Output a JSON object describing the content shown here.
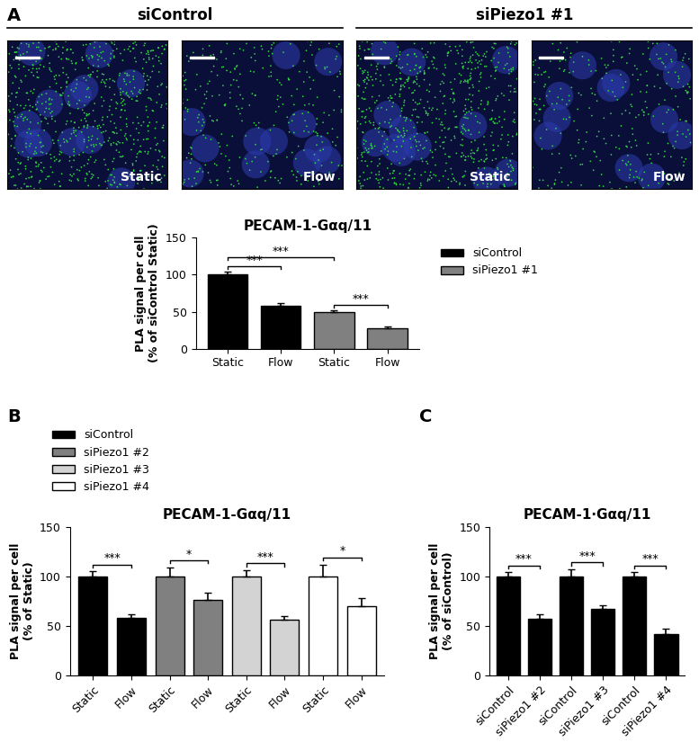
{
  "image_panel": {
    "panel": "A",
    "groups": [
      {
        "name": "siControl",
        "images": [
          "Static",
          "Flow"
        ]
      },
      {
        "name": "siPiezo1 #1",
        "images": [
          "Static",
          "Flow"
        ]
      }
    ]
  },
  "chart_data": [
    {
      "type": "bar",
      "panel": "A",
      "title": "PECAM-1-Gαq/11",
      "y_label": "PLA signal per cell\n(% of siControl Static)",
      "categories": [
        "Static",
        "Flow",
        "Static",
        "Flow"
      ],
      "series": [
        {
          "name": "siControl",
          "color": "#000000",
          "values": [
            100,
            58,
            null,
            null
          ],
          "errors": [
            4,
            4,
            null,
            null
          ]
        },
        {
          "name": "siPiezo1 #1",
          "color": "#808080",
          "values": [
            null,
            null,
            50,
            28
          ],
          "errors": [
            null,
            null,
            2,
            2
          ]
        }
      ],
      "ylim": [
        0,
        150
      ],
      "yticks": [
        0,
        50,
        100,
        150
      ],
      "legend": "upper left",
      "significance": [
        {
          "from": 0,
          "to": 1,
          "label": "***"
        },
        {
          "from": 2,
          "to": 3,
          "label": "***"
        },
        {
          "from": 0,
          "to": 2,
          "label": "***"
        }
      ]
    },
    {
      "type": "bar",
      "panel": "B",
      "title": "PECAM-1-Gαq/11",
      "y_label": "PLA signal per cell\n(% of Static)",
      "categories": [
        "Static",
        "Flow",
        "Static",
        "Flow",
        "Static",
        "Flow",
        "Static",
        "Flow"
      ],
      "series": [
        {
          "name": "siControl",
          "color": "#000000",
          "values": [
            100,
            58,
            null,
            null,
            null,
            null,
            null,
            null
          ],
          "errors": [
            5,
            4,
            null,
            null,
            null,
            null,
            null,
            null
          ]
        },
        {
          "name": "siPiezo1 #2",
          "color": "#808080",
          "values": [
            null,
            null,
            100,
            76,
            null,
            null,
            null,
            null
          ],
          "errors": [
            null,
            null,
            9,
            7,
            null,
            null,
            null,
            null
          ]
        },
        {
          "name": "siPiezo1 #3",
          "color": "#d3d3d3",
          "values": [
            null,
            null,
            null,
            null,
            100,
            56,
            null,
            null
          ],
          "errors": [
            null,
            null,
            null,
            null,
            6,
            4,
            null,
            null
          ]
        },
        {
          "name": "siPiezo1 #4",
          "color": "#ffffff",
          "values": [
            null,
            null,
            null,
            null,
            null,
            null,
            100,
            70
          ],
          "errors": [
            null,
            null,
            null,
            null,
            null,
            null,
            12,
            8
          ]
        }
      ],
      "ylim": [
        0,
        150
      ],
      "yticks": [
        0,
        50,
        100,
        150
      ],
      "legend": "upper left",
      "significance": [
        {
          "from": 0,
          "to": 1,
          "label": "***"
        },
        {
          "from": 2,
          "to": 3,
          "label": "*"
        },
        {
          "from": 4,
          "to": 5,
          "label": "***"
        },
        {
          "from": 6,
          "to": 7,
          "label": "*"
        }
      ]
    },
    {
      "type": "bar",
      "panel": "C",
      "title": "PECAM-1·Gαq/11",
      "y_label": "PLA signal per cell\n(% of siControl)",
      "categories": [
        "siControl",
        "siPiezo1 #2",
        "siControl",
        "siPiezo1 #3",
        "siControl",
        "siPiezo1 #4"
      ],
      "values": [
        100,
        57,
        100,
        67,
        100,
        42
      ],
      "errors": [
        4,
        5,
        7,
        4,
        4,
        5
      ],
      "color": "#000000",
      "ylim": [
        0,
        150
      ],
      "yticks": [
        0,
        50,
        100,
        150
      ],
      "significance": [
        {
          "from": 0,
          "to": 1,
          "label": "***"
        },
        {
          "from": 2,
          "to": 3,
          "label": "***"
        },
        {
          "from": 4,
          "to": 5,
          "label": "***"
        }
      ]
    }
  ]
}
